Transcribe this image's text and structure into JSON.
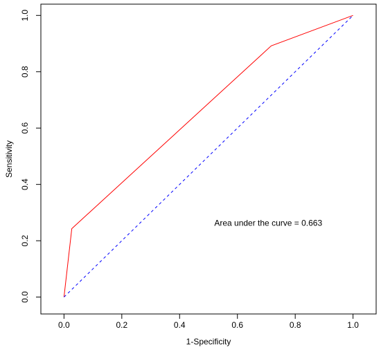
{
  "chart_data": {
    "type": "line",
    "title": "",
    "xlabel": "1-Specificity",
    "ylabel": "Sensitivity",
    "xlim": [
      -0.08,
      1.08
    ],
    "ylim": [
      -0.06,
      1.04
    ],
    "xticks": [
      0.0,
      0.2,
      0.4,
      0.6,
      0.8,
      1.0
    ],
    "yticks": [
      0.0,
      0.2,
      0.4,
      0.6,
      0.8,
      1.0
    ],
    "xtick_labels": [
      "0.0",
      "0.2",
      "0.4",
      "0.6",
      "0.8",
      "1.0"
    ],
    "ytick_labels": [
      "0.0",
      "0.2",
      "0.4",
      "0.6",
      "0.8",
      "1.0"
    ],
    "grid": false,
    "series": [
      {
        "style": "solid",
        "color": "#ff0000",
        "x": [
          0.0,
          0.027,
          0.717,
          1.0
        ],
        "y": [
          0.0,
          0.243,
          0.892,
          1.0
        ]
      },
      {
        "style": "dashed",
        "color": "#0000ff",
        "x": [
          0.0,
          1.0
        ],
        "y": [
          0.0,
          1.0
        ]
      }
    ],
    "annotations": [
      {
        "text": "Area under the curve = 0.663",
        "x": 0.52,
        "y": 0.253
      }
    ]
  }
}
